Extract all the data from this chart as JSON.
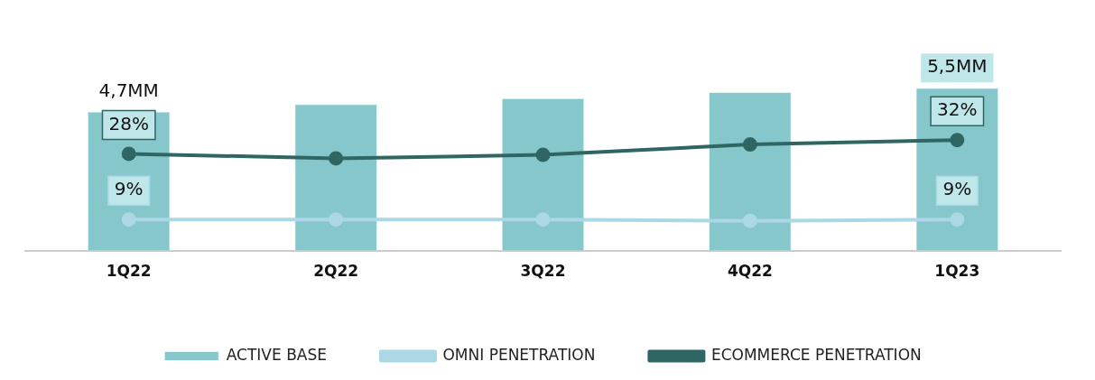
{
  "chart_data": {
    "type": "bar",
    "categories": [
      "1Q22",
      "2Q22",
      "3Q22",
      "4Q22",
      "1Q23"
    ],
    "grid": false,
    "legend": "bottom",
    "marker": "circle",
    "tick_labels": "x",
    "series": [
      {
        "name": "ACTIVE BASE",
        "type": "bar",
        "color": "#86c7cc",
        "values": [
          4.7,
          4.95,
          5.15,
          5.35,
          5.5
        ],
        "value_labels": [
          "4,7MM",
          null,
          null,
          null,
          "5,5MM"
        ]
      },
      {
        "name": "OMNI PENETRATION",
        "type": "line",
        "axis": "y2",
        "color": "#acd8e6",
        "values": [
          9,
          9,
          9,
          8.6,
          9
        ],
        "value_labels": [
          "9%",
          null,
          null,
          null,
          "9%"
        ]
      },
      {
        "name": "ECOMMERCE PENETRATION",
        "type": "line",
        "axis": "y2",
        "color": "#2f6664",
        "values": [
          28,
          26.7,
          27.7,
          30.7,
          32
        ],
        "value_labels": [
          "28%",
          null,
          null,
          null,
          "32%"
        ]
      }
    ]
  }
}
